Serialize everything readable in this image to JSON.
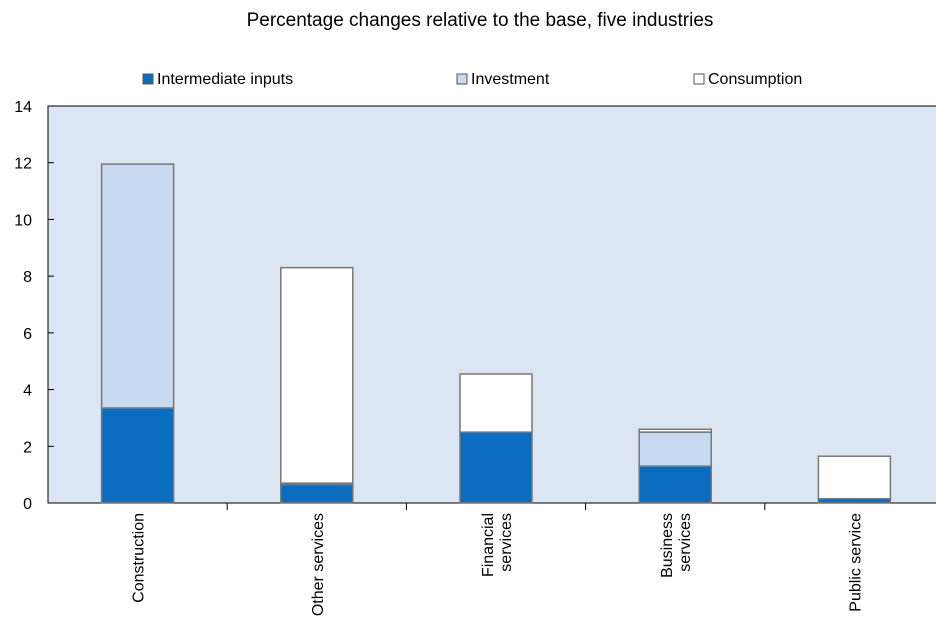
{
  "chart_data": {
    "type": "bar",
    "stacked": true,
    "title": "Percentage changes relative to the base, five industries",
    "xlabel": "",
    "ylabel": "",
    "ylim": [
      0,
      14
    ],
    "yticks": [
      0,
      2,
      4,
      6,
      8,
      10,
      12,
      14
    ],
    "grid": false,
    "legend_position": "top",
    "categories": [
      [
        "Construction"
      ],
      [
        "Other services"
      ],
      [
        "Financial",
        "services"
      ],
      [
        "Business",
        "services"
      ],
      [
        "Public service"
      ]
    ],
    "series": [
      {
        "name": "Intermediate inputs",
        "color": "#0b6dbf",
        "values": [
          3.35,
          0.65,
          2.5,
          1.3,
          0.15
        ]
      },
      {
        "name": "Investment",
        "color": "#c8daf0",
        "values": [
          8.6,
          0.05,
          0.0,
          1.2,
          0.0
        ]
      },
      {
        "name": "Consumption",
        "color": "#ffffff",
        "values": [
          0.0,
          7.6,
          2.05,
          0.1,
          1.5
        ]
      }
    ],
    "plot_background": "#dce6f2"
  }
}
